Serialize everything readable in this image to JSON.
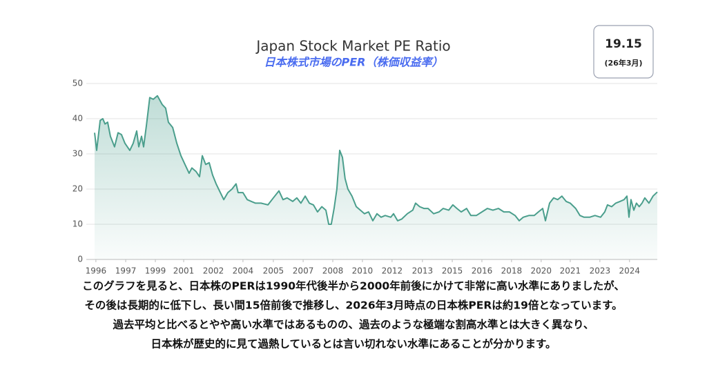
{
  "chart_data": {
    "type": "line",
    "title": "Japan Stock Market PE Ratio",
    "subtitle": "日本株式市場のPER（株価収益率）",
    "badge": {
      "value": "19.15",
      "note": "(26年3月)"
    },
    "x": [
      1996.0,
      1996.11,
      1996.3,
      1996.44,
      1996.56,
      1996.7,
      1996.85,
      1997.07,
      1997.26,
      1997.44,
      1997.63,
      1997.89,
      1998.07,
      1998.26,
      1998.37,
      1998.52,
      1998.63,
      1998.78,
      1998.96,
      1999.15,
      1999.37,
      1999.63,
      1999.81,
      1999.96,
      2000.19,
      2000.41,
      2000.63,
      2000.85,
      2001.07,
      2001.22,
      2001.44,
      2001.63,
      2001.78,
      2001.96,
      2002.15,
      2002.33,
      2002.52,
      2002.7,
      2002.93,
      2003.15,
      2003.37,
      2003.59,
      2003.7,
      2003.96,
      2004.19,
      2004.41,
      2004.63,
      2004.93,
      2005.3,
      2005.59,
      2005.89,
      2006.11,
      2006.33,
      2006.63,
      2006.85,
      2007.07,
      2007.3,
      2007.52,
      2007.74,
      2007.96,
      2008.19,
      2008.41,
      2008.56,
      2008.7,
      2008.85,
      2009.0,
      2009.15,
      2009.3,
      2009.44,
      2009.59,
      2009.81,
      2010.04,
      2010.26,
      2010.48,
      2010.7,
      2010.93,
      2011.15,
      2011.37,
      2011.59,
      2011.89,
      2012.04,
      2012.26,
      2012.48,
      2012.78,
      2013.07,
      2013.22,
      2013.44,
      2013.67,
      2013.89,
      2014.19,
      2014.48,
      2014.7,
      2015.0,
      2015.22,
      2015.44,
      2015.67,
      2015.96,
      2016.19,
      2016.48,
      2016.78,
      2017.07,
      2017.37,
      2017.67,
      2017.96,
      2018.26,
      2018.56,
      2018.78,
      2019.0,
      2019.3,
      2019.59,
      2019.81,
      2020.04,
      2020.19,
      2020.41,
      2020.63,
      2020.85,
      2021.07,
      2021.3,
      2021.52,
      2021.81,
      2022.04,
      2022.26,
      2022.56,
      2022.85,
      2023.15,
      2023.37,
      2023.52,
      2023.74,
      2023.96,
      2024.19,
      2024.41,
      2024.56,
      2024.67,
      2024.78,
      2024.93,
      2025.07,
      2025.22,
      2025.37,
      2025.52,
      2025.74,
      2025.96,
      2026.19
    ],
    "values": [
      36,
      31,
      39.5,
      40,
      38.5,
      39,
      35,
      32,
      36,
      35.5,
      33,
      31,
      33,
      36.5,
      32,
      35,
      32,
      38,
      46,
      45.5,
      46.5,
      44,
      43,
      39,
      37.5,
      33,
      29.5,
      27,
      24.5,
      26,
      25,
      23.5,
      29.5,
      27,
      27.5,
      24,
      21.5,
      19.5,
      17,
      19,
      20,
      21.5,
      19,
      19,
      17,
      16.5,
      16,
      16,
      15.5,
      17.5,
      19.5,
      17,
      17.5,
      16.5,
      17.5,
      16,
      18,
      16,
      15.5,
      13.5,
      15,
      14,
      10,
      10,
      14.5,
      20,
      31,
      29,
      23,
      20,
      18,
      15,
      14,
      13,
      13.5,
      11,
      13,
      12,
      12.5,
      12,
      13,
      11,
      11.5,
      13,
      14,
      16,
      15,
      14.5,
      14.5,
      13,
      13.5,
      14.5,
      14,
      15.5,
      14.5,
      13.5,
      14.5,
      12.5,
      12.5,
      13.5,
      14.5,
      14,
      14.5,
      13.5,
      13.5,
      12.5,
      11,
      12,
      12.5,
      12.5,
      13.5,
      14.5,
      11,
      16,
      17.5,
      17,
      18,
      16.5,
      16,
      14.5,
      12.5,
      12,
      12,
      12.5,
      12,
      13.5,
      15.5,
      15,
      16,
      16.5,
      17,
      18,
      12,
      17,
      14,
      16,
      15,
      16,
      17.5,
      16,
      18,
      19.15
    ],
    "color": "#4a9e8c",
    "xlim": [
      1996,
      2026.19
    ],
    "ylim": [
      0,
      50
    ],
    "yticks": [
      0,
      10,
      20,
      30,
      40,
      50
    ],
    "xticks": [
      {
        "value": 1996.07,
        "label": "1996"
      },
      {
        "value": 1997.67,
        "label": "1997"
      },
      {
        "value": 1999.26,
        "label": "1999"
      },
      {
        "value": 2000.78,
        "label": "2001"
      },
      {
        "value": 2002.37,
        "label": "2002"
      },
      {
        "value": 2003.96,
        "label": "2004"
      },
      {
        "value": 2005.59,
        "label": "2005"
      },
      {
        "value": 2007.19,
        "label": "2007"
      },
      {
        "value": 2008.78,
        "label": "2008"
      },
      {
        "value": 2010.37,
        "label": "2010"
      },
      {
        "value": 2011.96,
        "label": "2012"
      },
      {
        "value": 2013.59,
        "label": "2013"
      },
      {
        "value": 2015.19,
        "label": "2015"
      },
      {
        "value": 2016.78,
        "label": "2016"
      },
      {
        "value": 2018.37,
        "label": "2018"
      },
      {
        "value": 2019.96,
        "label": "2020"
      },
      {
        "value": 2021.52,
        "label": "2021"
      },
      {
        "value": 2023.11,
        "label": "2023"
      },
      {
        "value": 2024.7,
        "label": "2024"
      }
    ],
    "grid": true,
    "caption": [
      "このグラフを見ると、日本株のPERは1990年代後半から2000年前後にかけて非常に高い水準にありましたが、",
      "その後は長期的に低下し、長い間15倍前後で推移し、2026年3月時点の日本株PERは約19倍となっています。",
      "過去平均と比べるとやや高い水準ではあるものの、過去のような極端な割高水準とは大きく異なり、",
      "日本株が歴史的に見て過熱しているとは言い切れない水準にあることが分かります。"
    ]
  }
}
